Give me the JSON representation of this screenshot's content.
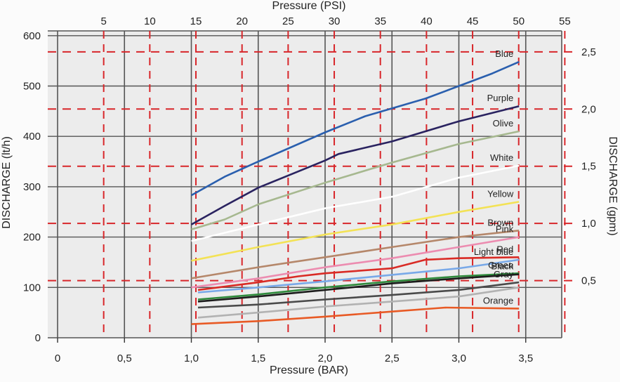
{
  "chart_data": {
    "type": "line",
    "x_bottom": {
      "label": "Pressure (BAR)",
      "range": [
        0,
        3.8
      ],
      "ticks": [
        0,
        0.5,
        1.0,
        1.5,
        2.0,
        2.5,
        3.0,
        3.5
      ],
      "tick_labels": [
        "0",
        "0,5",
        "1,0",
        "1,5",
        "2,0",
        "2,5",
        "3,0",
        "3,5"
      ]
    },
    "x_top": {
      "label": "Pressure (PSI)",
      "ticks": [
        5,
        10,
        15,
        20,
        25,
        30,
        35,
        40,
        45,
        50,
        55
      ],
      "tick_labels": [
        "5",
        "10",
        "15",
        "20",
        "25",
        "30",
        "35",
        "40",
        "45",
        "50",
        "55"
      ]
    },
    "y_left": {
      "label": "DISCHARGE (lt/h)",
      "range": [
        0,
        620
      ],
      "ticks": [
        0,
        100,
        200,
        300,
        400,
        500,
        600
      ],
      "tick_labels": [
        "0",
        "100",
        "200",
        "300",
        "400",
        "500",
        "600"
      ]
    },
    "y_right": {
      "label": "DISCHARGE (gpm)",
      "ticks": [
        0.5,
        1.0,
        1.5,
        2.0,
        2.5
      ],
      "tick_labels": [
        "0,5",
        "1,0",
        "1,5",
        "2,0",
        "2,5"
      ]
    },
    "grid": true,
    "series": [
      {
        "name": "Blue",
        "color": "#2a5fae",
        "x": [
          1.0,
          1.25,
          1.5,
          2.0,
          2.3,
          2.75,
          3.0,
          3.25,
          3.45
        ],
        "y": [
          283,
          320,
          350,
          408,
          440,
          475,
          500,
          525,
          548
        ]
      },
      {
        "name": "Purple",
        "color": "#2a2360",
        "x": [
          1.0,
          1.25,
          1.5,
          2.0,
          2.1,
          2.5,
          3.0,
          3.45
        ],
        "y": [
          225,
          262,
          298,
          352,
          365,
          390,
          430,
          460
        ]
      },
      {
        "name": "Olive",
        "color": "#a6b88f",
        "x": [
          1.0,
          1.25,
          1.5,
          2.0,
          2.5,
          3.0,
          3.45
        ],
        "y": [
          215,
          235,
          265,
          308,
          348,
          385,
          410
        ]
      },
      {
        "name": "White",
        "color": "#ffffff",
        "x": [
          1.0,
          1.5,
          2.0,
          2.5,
          3.0,
          3.45
        ],
        "y": [
          192,
          225,
          257,
          280,
          318,
          342
        ]
      },
      {
        "name": "Yellow",
        "color": "#f3e255",
        "x": [
          1.0,
          1.5,
          2.0,
          2.5,
          3.0,
          3.45
        ],
        "y": [
          153,
          180,
          205,
          225,
          250,
          270
        ]
      },
      {
        "name": "Brown",
        "color": "#b5876a",
        "x": [
          1.0,
          1.5,
          2.0,
          2.5,
          3.0,
          3.45
        ],
        "y": [
          118,
          140,
          160,
          180,
          200,
          213
        ]
      },
      {
        "name": "Pink",
        "color": "#ec8cb0",
        "x": [
          1.0,
          1.5,
          2.0,
          2.5,
          3.0,
          3.45
        ],
        "y": [
          100,
          118,
          140,
          158,
          180,
          200
        ]
      },
      {
        "name": "Red",
        "color": "#d92b25",
        "x": [
          1.05,
          1.5,
          1.8,
          2.0,
          2.5,
          2.75,
          3.0,
          3.45
        ],
        "y": [
          95,
          110,
          122,
          128,
          138,
          155,
          158,
          160
        ]
      },
      {
        "name": "Light blue",
        "color": "#79a9e8",
        "x": [
          1.05,
          1.5,
          2.0,
          2.5,
          3.0,
          3.45
        ],
        "y": [
          90,
          100,
          112,
          125,
          138,
          155
        ]
      },
      {
        "name": "Green",
        "color": "#2f8a3c",
        "x": [
          1.05,
          1.5,
          2.0,
          2.5,
          3.0,
          3.45
        ],
        "y": [
          76,
          86,
          100,
          112,
          122,
          128
        ]
      },
      {
        "name": "Black",
        "color": "#1c1c1c",
        "x": [
          1.05,
          1.5,
          2.0,
          2.5,
          3.0,
          3.45
        ],
        "y": [
          72,
          82,
          95,
          108,
          118,
          126
        ]
      },
      {
        "name": "Gray",
        "color": "#4a4a4a",
        "x": [
          1.05,
          1.5,
          2.0,
          2.5,
          3.0,
          3.45
        ],
        "y": [
          60,
          66,
          76,
          85,
          95,
          110
        ]
      },
      {
        "name": "",
        "color": "#b2b2b2",
        "x": [
          1.05,
          1.5,
          2.0,
          2.5,
          3.0,
          3.45
        ],
        "y": [
          40,
          50,
          62,
          72,
          82,
          100
        ]
      },
      {
        "name": "Orange",
        "color": "#e85a25",
        "x": [
          1.0,
          1.5,
          2.0,
          2.5,
          2.9,
          3.45
        ],
        "y": [
          27,
          33,
          42,
          52,
          60,
          58
        ]
      }
    ]
  }
}
